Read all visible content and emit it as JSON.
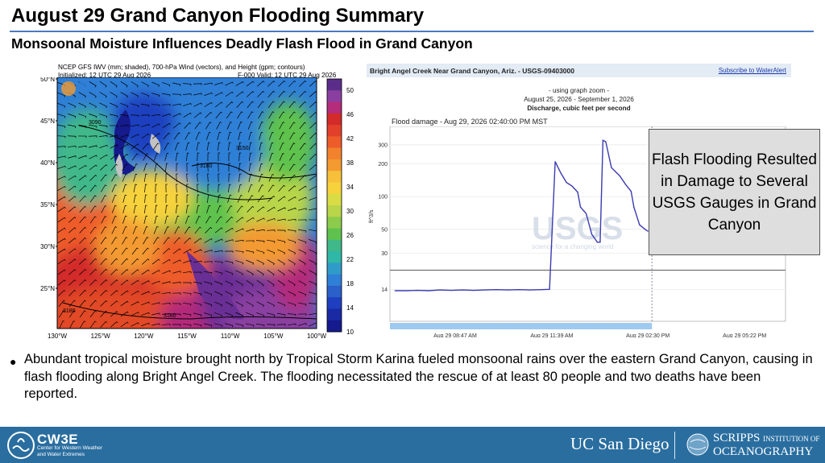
{
  "slide": {
    "title": "August 29 Grand Canyon Flooding Summary",
    "subtitle": "Monsoonal Moisture Influences Deadly Flash Flood in Grand Canyon",
    "bullet": "Abundant tropical moisture brought north by Tropical Storm Karina fueled monsoonal rains over the eastern Grand Canyon, causing in flash flooding along Bright Angel Creek. The flooding necessitated the rescue of at least 80 people and two deaths have been reported.",
    "callout": "Flash Flooding Resulted in Damage to Several USGS Gauges in Grand Canyon"
  },
  "map": {
    "header_line1": "NCEP GFS IWV (mm; shaded), 700-hPa Wind (vectors), and Height (gpm; contours)",
    "header_line2": "Initialized: 12 UTC 29 Aug 2026",
    "header_right": "F-000  Valid: 12 UTC 29 Aug 2026",
    "lat_labels": [
      "50°N",
      "45°N",
      "40°N",
      "35°N",
      "30°N",
      "25°N"
    ],
    "lon_labels": [
      "130°W",
      "125°W",
      "120°W",
      "115°W",
      "110°W",
      "105°W",
      "100°W"
    ],
    "colorbar_labels": [
      "50",
      "46",
      "42",
      "38",
      "34",
      "30",
      "26",
      "22",
      "18",
      "14",
      "10"
    ],
    "contour_labels": [
      "3090",
      "3180",
      "3180",
      "3180",
      "3150"
    ],
    "colors": [
      "#5b2d8a",
      "#8a3fa0",
      "#b42c7a",
      "#d32a2a",
      "#ee5c2a",
      "#f39a30",
      "#f6d23c",
      "#b9d54a",
      "#5fc24e",
      "#2fb8a6",
      "#2f7fd6",
      "#1e3fbf",
      "#151a8c",
      "#c2c2c2"
    ]
  },
  "hydrograph": {
    "site": "Bright Angel Creek Near Grand Canyon, Ariz. - USGS-09403000",
    "subscribe": "Subscribe to WaterAlert",
    "zoom_note": "- using graph zoom -",
    "date_range": "August 25, 2026 - September 1, 2026",
    "quantity": "Discharge, cubic feet per second",
    "annotation": "Flood damage - Aug 29, 2026 02:40:00 PM MST",
    "ylabel": "ft^3/s",
    "watermark": "USGS",
    "watermark_sub": "science for a changing world",
    "line_color": "#3b3bb0"
  },
  "chart_data": {
    "type": "line",
    "title": "",
    "xlabel": "",
    "ylabel": "ft^3/s",
    "y_scale": "log",
    "y_ticks": [
      14,
      30,
      50,
      100,
      200,
      300
    ],
    "x_ticks": [
      "Aug 29 08:47 AM",
      "Aug 29 11:39 AM",
      "Aug 29 02:30 PM",
      "Aug 29 05:22 PM"
    ],
    "series": [
      {
        "values": [
          {
            "x": "Aug 29 07:00 AM",
            "y": 13.6
          },
          {
            "x": "Aug 29 07:20 AM",
            "y": 13.6
          },
          {
            "x": "Aug 29 07:40 AM",
            "y": 13.7
          },
          {
            "x": "Aug 29 08:00 AM",
            "y": 13.6
          },
          {
            "x": "Aug 29 08:20 AM",
            "y": 13.8
          },
          {
            "x": "Aug 29 08:40 AM",
            "y": 13.7
          },
          {
            "x": "Aug 29 09:00 AM",
            "y": 13.8
          },
          {
            "x": "Aug 29 09:20 AM",
            "y": 13.7
          },
          {
            "x": "Aug 29 09:40 AM",
            "y": 13.8
          },
          {
            "x": "Aug 29 10:00 AM",
            "y": 13.9
          },
          {
            "x": "Aug 29 10:20 AM",
            "y": 13.8
          },
          {
            "x": "Aug 29 10:40 AM",
            "y": 13.9
          },
          {
            "x": "Aug 29 11:00 AM",
            "y": 13.8
          },
          {
            "x": "Aug 29 11:20 AM",
            "y": 13.9
          },
          {
            "x": "Aug 29 11:35 AM",
            "y": 14.0
          },
          {
            "x": "Aug 29 11:45 AM",
            "y": 210
          },
          {
            "x": "Aug 29 11:55 AM",
            "y": 165
          },
          {
            "x": "Aug 29 12:05 PM",
            "y": 135
          },
          {
            "x": "Aug 29 12:15 PM",
            "y": 125
          },
          {
            "x": "Aug 29 12:25 PM",
            "y": 110
          },
          {
            "x": "Aug 29 12:30 PM",
            "y": 80
          },
          {
            "x": "Aug 29 12:40 PM",
            "y": 70
          },
          {
            "x": "Aug 29 12:50 PM",
            "y": 45
          },
          {
            "x": "Aug 29 01:00 PM",
            "y": 38
          },
          {
            "x": "Aug 29 01:05 PM",
            "y": 38
          },
          {
            "x": "Aug 29 01:10 PM",
            "y": 330
          },
          {
            "x": "Aug 29 01:15 PM",
            "y": 320
          },
          {
            "x": "Aug 29 01:25 PM",
            "y": 185
          },
          {
            "x": "Aug 29 01:40 PM",
            "y": 155
          },
          {
            "x": "Aug 29 01:50 PM",
            "y": 130
          },
          {
            "x": "Aug 29 02:00 PM",
            "y": 112
          },
          {
            "x": "Aug 29 02:05 PM",
            "y": 80
          },
          {
            "x": "Aug 29 02:15 PM",
            "y": 55
          },
          {
            "x": "Aug 29 02:25 PM",
            "y": 50
          },
          {
            "x": "Aug 29 02:30 PM",
            "y": 48
          }
        ]
      }
    ],
    "threshold": 21,
    "flood_damage_time": "Aug 29 02:40 PM",
    "grid": true
  },
  "footer": {
    "brand": "CW3E",
    "brand_sub": "Center for Western Weather and Water Extremes",
    "ucsd": "UC San Diego",
    "scripps_line1": "SCRIPPS",
    "scripps_small": "INSTITUTION OF",
    "scripps_line2": "OCEANOGRAPHY",
    "bar_color": "#2a6ea0"
  }
}
